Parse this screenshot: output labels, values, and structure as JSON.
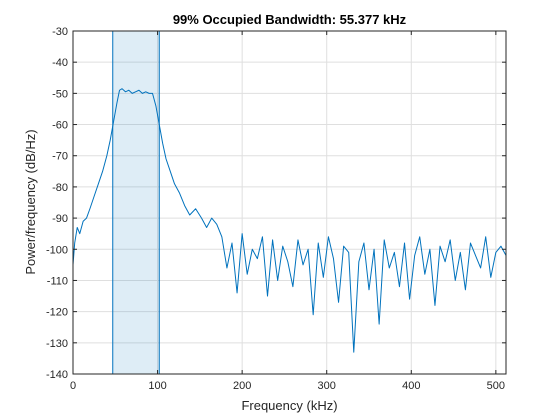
{
  "chart_data": {
    "type": "line",
    "title": "99% Occupied Bandwidth: 55.377 kHz",
    "xlabel": "Frequency (kHz)",
    "ylabel": "Power/frequency (dB/Hz)",
    "xlim": [
      0,
      512
    ],
    "ylim": [
      -140,
      -30
    ],
    "x_ticks": [
      0,
      100,
      200,
      300,
      400,
      500
    ],
    "y_ticks": [
      -30,
      -40,
      -50,
      -60,
      -70,
      -80,
      -90,
      -100,
      -110,
      -120,
      -130,
      -140
    ],
    "grid": true,
    "legend": "none",
    "occupied_band": {
      "start_khz": 47,
      "end_khz": 102,
      "bandwidth_khz": 55.377
    },
    "series": [
      {
        "color": "#0072bd",
        "x": [
          0,
          2,
          5,
          8,
          12,
          16,
          20,
          25,
          30,
          35,
          40,
          44,
          48,
          52,
          55,
          58,
          62,
          66,
          70,
          74,
          78,
          82,
          86,
          90,
          94,
          98,
          102,
          106,
          110,
          115,
          120,
          126,
          132,
          138,
          145,
          152,
          158,
          164,
          170,
          176,
          182,
          188,
          194,
          200,
          206,
          212,
          218,
          224,
          230,
          236,
          242,
          248,
          254,
          260,
          266,
          272,
          278,
          284,
          290,
          296,
          302,
          308,
          314,
          320,
          326,
          332,
          338,
          344,
          350,
          356,
          362,
          368,
          374,
          380,
          386,
          392,
          398,
          404,
          410,
          416,
          422,
          428,
          434,
          440,
          446,
          452,
          458,
          464,
          470,
          476,
          482,
          488,
          494,
          500,
          506,
          512
        ],
        "y": [
          -105,
          -98,
          -93,
          -95,
          -91,
          -90,
          -87,
          -83,
          -79,
          -75,
          -70,
          -65,
          -59,
          -53,
          -49,
          -48.5,
          -49.5,
          -49,
          -50,
          -49.5,
          -49,
          -50,
          -49.5,
          -50,
          -50,
          -54,
          -60,
          -66,
          -71,
          -75,
          -79,
          -82,
          -86,
          -89,
          -87,
          -90,
          -93,
          -90,
          -92,
          -96,
          -106,
          -98,
          -114,
          -95,
          -108,
          -100,
          -103,
          -96,
          -115,
          -97,
          -110,
          -99,
          -104,
          -112,
          -97,
          -105,
          -100,
          -121,
          -98,
          -109,
          -96,
          -103,
          -117,
          -99,
          -101,
          -133,
          -104,
          -98,
          -113,
          -100,
          -124,
          -97,
          -106,
          -101,
          -112,
          -98,
          -116,
          -102,
          -96,
          -108,
          -100,
          -118,
          -99,
          -104,
          -97,
          -110,
          -101,
          -113,
          -98,
          -102,
          -106,
          -96,
          -109,
          -101,
          -99,
          -102
        ]
      }
    ]
  }
}
